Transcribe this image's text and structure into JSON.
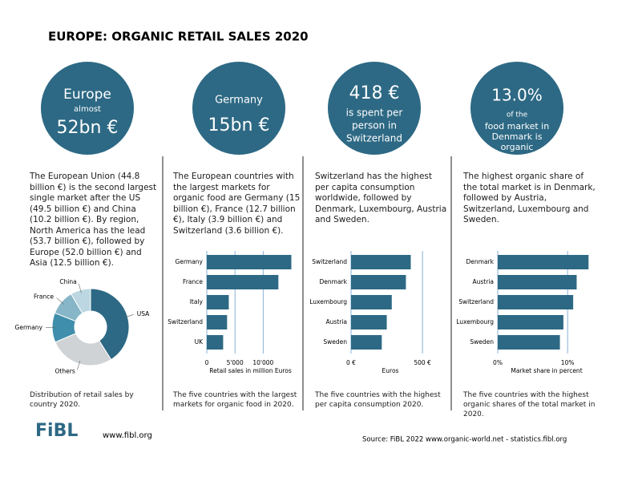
{
  "title": "EUROPE: ORGANIC RETAIL SALES 2020",
  "columns": [
    {
      "circle": [
        "Europe",
        "almost",
        "52bn €"
      ],
      "text": "The European Union (44.8 billion €) is the second largest single market after the US (49.5 billion €) and China (10.2 billion €). By region, North America has the lead (53.7 billion €), followed by Europe (52.0 billion €) and Asia (12.5 billion €).",
      "chart_data": {
        "type": "pie",
        "categories": [
          "USA",
          "Others",
          "Germany",
          "France",
          "China"
        ],
        "values": [
          49.5,
          33.2,
          15.0,
          12.7,
          10.2
        ],
        "colors": [
          "#2d6984",
          "#cfd3d5",
          "#3f8eab",
          "#86b6c8",
          "#bcd7e1"
        ]
      },
      "caption": "Distribution of retail sales by country 2020."
    },
    {
      "circle": [
        "Germany",
        "15bn €"
      ],
      "text": "The European countries with the largest markets for organic food are Germany (15 billion €), France (12.7 billion €), Italy (3.9 billion €) and Switzerland (3.6 billion €).",
      "chart_data": {
        "type": "hbar",
        "categories": [
          "Germany",
          "France",
          "Italy",
          "Switzerland",
          "UK"
        ],
        "values": [
          15000,
          12700,
          3900,
          3600,
          2900
        ],
        "color": "#2d6984",
        "xlim": [
          0,
          15500
        ],
        "xticks": [
          0,
          {
            "value": 5000,
            "label": "5'000"
          },
          {
            "value": 10000,
            "label": "10'000"
          }
        ],
        "x_label": "Retail sales in million Euros",
        "grid": true
      },
      "caption": "The five countries with the largest markets for organic food in 2020."
    },
    {
      "circle": [
        "418 €",
        "is spent per",
        "person in",
        "Switzerland"
      ],
      "text": "Switzerland has the highest per capita consumption worldwide, followed by Denmark, Luxembourg, Austria and Sweden.",
      "chart_data": {
        "type": "hbar",
        "categories": [
          "Switzerland",
          "Denmark",
          "Luxembourg",
          "Austria",
          "Sweden"
        ],
        "values": [
          418,
          384,
          285,
          250,
          215
        ],
        "color": "#2d6984",
        "xlim": [
          0,
          550
        ],
        "xticks": [
          {
            "value": 0,
            "label": "0 €"
          },
          {
            "value": 500,
            "label": "500 €"
          }
        ],
        "x_label": "Euros",
        "grid": true
      },
      "caption": "The five countries with the highest per capita consumption 2020."
    },
    {
      "circle": [
        "13.0%",
        "of the",
        "food market in",
        "Denmark is",
        "organic"
      ],
      "text": "The highest organic share of the total market is in Denmark, followed by Austria, Switzerland, Luxembourg and Sweden.",
      "chart_data": {
        "type": "hbar",
        "categories": [
          "Denmark",
          "Austria",
          "Switzerland",
          "Luxembourg",
          "Sweden"
        ],
        "values": [
          13.0,
          11.3,
          10.8,
          9.4,
          8.9
        ],
        "color": "#2d6984",
        "xlim": [
          0,
          14
        ],
        "xticks": [
          {
            "value": 0,
            "label": "0%"
          },
          {
            "value": 10,
            "label": "10%"
          }
        ],
        "x_label": "Market share in percent",
        "grid": true
      },
      "caption": "The five countries with the highest organic shares of the total market in 2020."
    }
  ],
  "footer": {
    "logo": "FiBL",
    "url": "www.fibl.org",
    "source": "Source: FiBL 2022 www.organic-world.net - statistics.fibl.org"
  }
}
